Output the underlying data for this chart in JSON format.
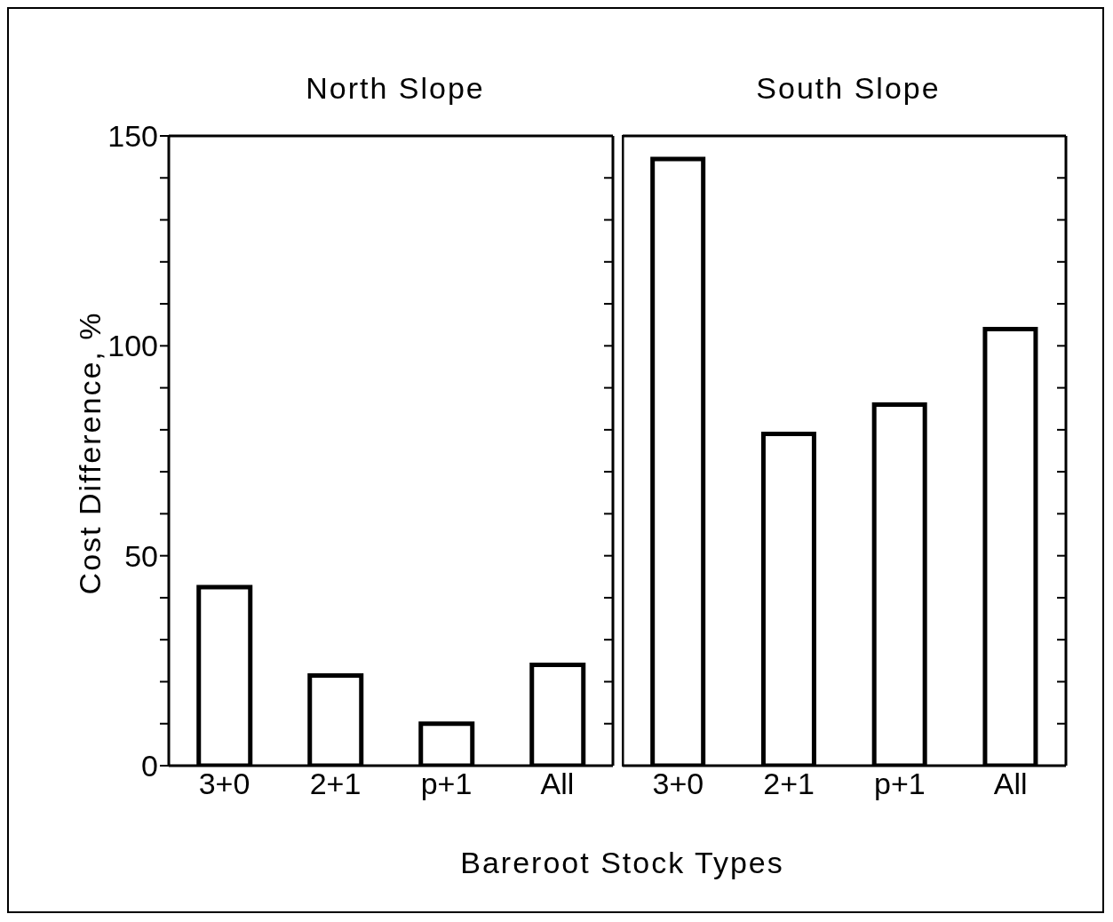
{
  "chart_data": [
    {
      "type": "bar",
      "title": "North Slope",
      "ylabel": "Cost Difference, %",
      "xlabel": "Bareroot Stock Types",
      "categories": [
        "3+0",
        "2+1",
        "p+1",
        "All"
      ],
      "values": [
        42.5,
        21.5,
        10,
        24
      ],
      "colors": [
        "#ffffff",
        "#ffffff",
        "#ffffff",
        "#ffffff"
      ],
      "ylim": [
        0,
        150
      ],
      "yticks": [
        0,
        {
          "value": 10,
          "label": null
        },
        {
          "value": 20,
          "label": null
        },
        {
          "value": 30,
          "label": null
        },
        {
          "value": 40,
          "label": null
        },
        50,
        {
          "value": 60,
          "label": null
        },
        {
          "value": 70,
          "label": null
        },
        {
          "value": 80,
          "label": null
        },
        {
          "value": 90,
          "label": null
        },
        100,
        {
          "value": 110,
          "label": null
        },
        {
          "value": 120,
          "label": null
        },
        {
          "value": 130,
          "label": null
        },
        {
          "value": 140,
          "label": null
        },
        150
      ],
      "grid": false,
      "legend": false
    },
    {
      "type": "bar",
      "title": "South Slope",
      "categories": [
        "3+0",
        "2+1",
        "p+1",
        "All"
      ],
      "values": [
        144.5,
        79,
        86,
        104
      ],
      "colors": [
        "#ffffff",
        "#ffffff",
        "#ffffff",
        "#ffffff"
      ],
      "ylim": [
        0,
        150
      ],
      "yticks": [
        0,
        {
          "value": 10,
          "label": null
        },
        {
          "value": 20,
          "label": null
        },
        {
          "value": 30,
          "label": null
        },
        {
          "value": 40,
          "label": null
        },
        50,
        {
          "value": 60,
          "label": null
        },
        {
          "value": 70,
          "label": null
        },
        {
          "value": 80,
          "label": null
        },
        {
          "value": 90,
          "label": null
        },
        100,
        {
          "value": 110,
          "label": null
        },
        {
          "value": 120,
          "label": null
        },
        {
          "value": 130,
          "label": null
        },
        {
          "value": 140,
          "label": null
        },
        150
      ],
      "grid": false,
      "legend": false,
      "tick_labels": "x"
    }
  ]
}
